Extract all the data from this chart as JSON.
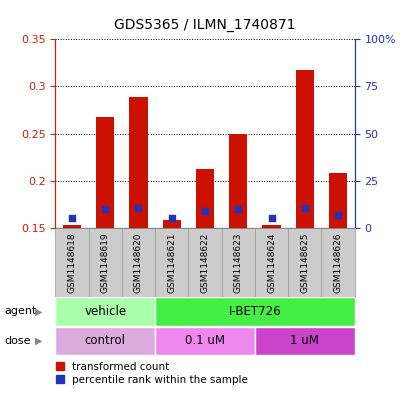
{
  "title": "GDS5365 / ILMN_1740871",
  "samples": [
    "GSM1148618",
    "GSM1148619",
    "GSM1148620",
    "GSM1148621",
    "GSM1148622",
    "GSM1148623",
    "GSM1148624",
    "GSM1148625",
    "GSM1148626"
  ],
  "red_bar_top": [
    0.153,
    0.268,
    0.289,
    0.158,
    0.213,
    0.25,
    0.153,
    0.317,
    0.208
  ],
  "red_bar_bottom": 0.15,
  "blue_vals": [
    0.161,
    0.17,
    0.171,
    0.161,
    0.168,
    0.17,
    0.161,
    0.171,
    0.164
  ],
  "ylim": [
    0.15,
    0.35
  ],
  "yticks_left": [
    0.15,
    0.2,
    0.25,
    0.3,
    0.35
  ],
  "right_labels": [
    "0",
    "25",
    "50",
    "75",
    "100%"
  ],
  "agent_groups": [
    {
      "label": "vehicle",
      "start": 0,
      "end": 3,
      "color": "#aaffaa"
    },
    {
      "label": "I-BET726",
      "start": 3,
      "end": 9,
      "color": "#44ee44"
    }
  ],
  "dose_groups": [
    {
      "label": "control",
      "start": 0,
      "end": 3,
      "color": "#ddaadd"
    },
    {
      "label": "0.1 uM",
      "start": 3,
      "end": 6,
      "color": "#ee88ee"
    },
    {
      "label": "1 uM",
      "start": 6,
      "end": 9,
      "color": "#cc44cc"
    }
  ],
  "bar_color": "#cc1100",
  "blue_color": "#2233bb",
  "left_label_color": "#cc2200",
  "right_label_color": "#2233bb",
  "blue_square_size": 18,
  "bar_width": 0.55,
  "sample_box_color": "#cccccc",
  "sample_box_edge": "#999999"
}
